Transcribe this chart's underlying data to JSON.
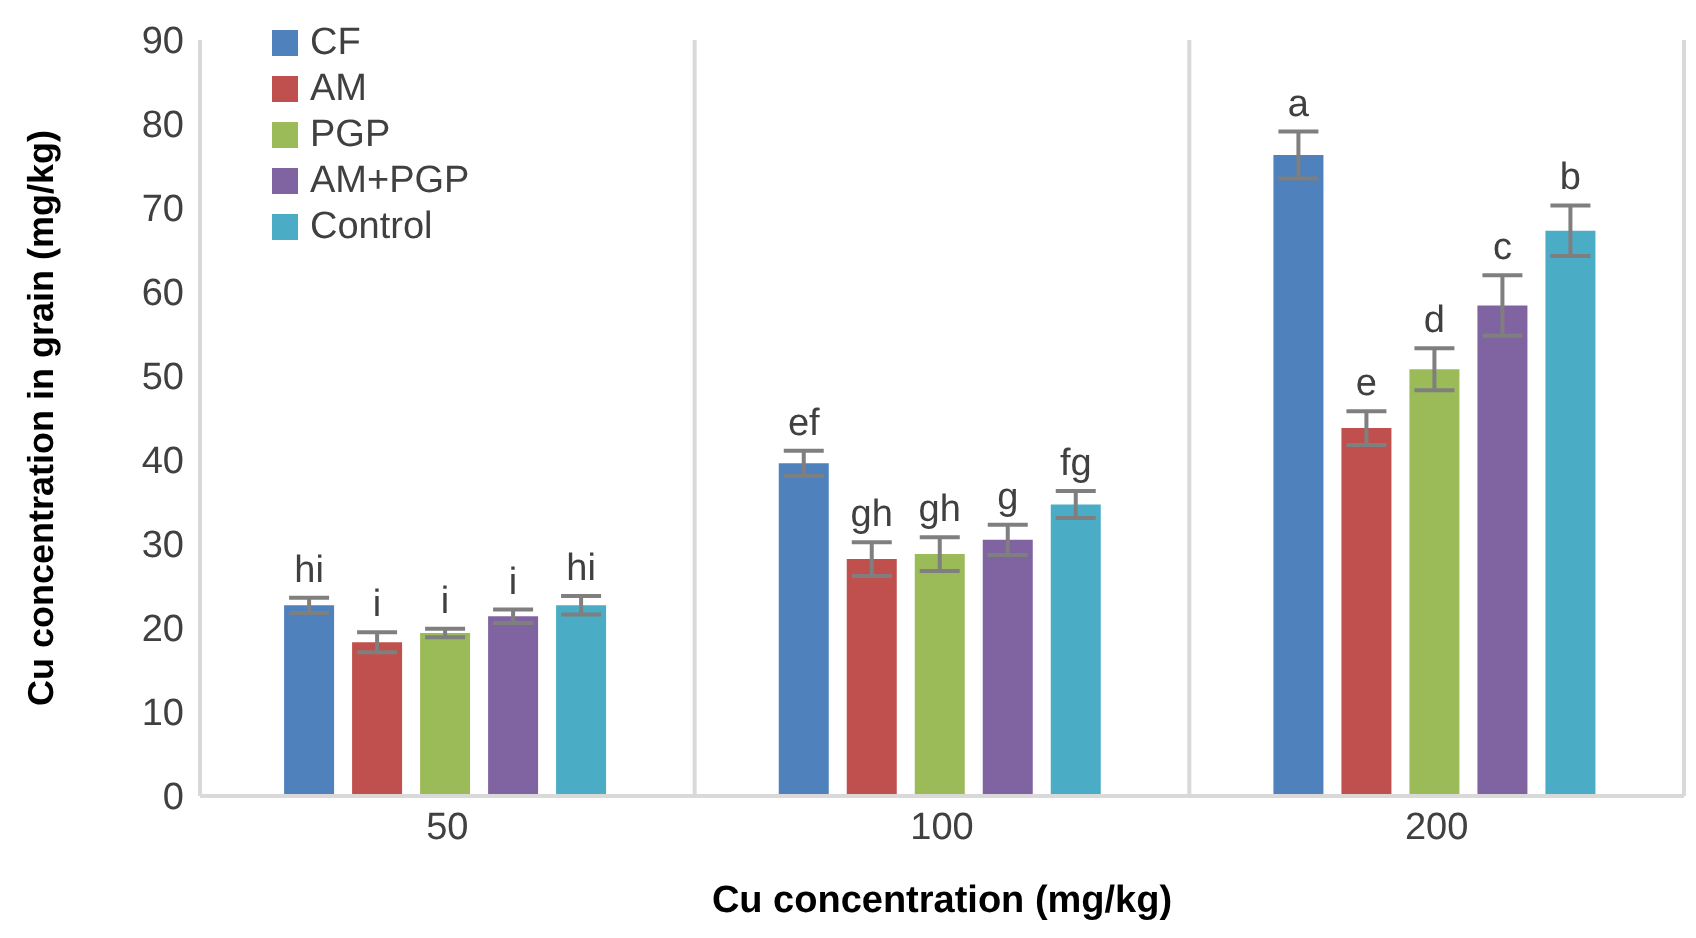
{
  "chart_data": {
    "type": "bar",
    "xlabel": "Cu concentration (mg/kg)",
    "ylabel": "Cu concentration in grain (mg/kg)",
    "categories": [
      "50",
      "100",
      "200"
    ],
    "series": [
      {
        "name": "CF",
        "color": "#4f81bd",
        "values": [
          22.7,
          39.6,
          76.3
        ],
        "errors": [
          0.9,
          1.5,
          2.8
        ],
        "value_labels": [
          "hi",
          "ef",
          "a"
        ]
      },
      {
        "name": "AM",
        "color": "#c0504d",
        "values": [
          18.3,
          28.2,
          43.8
        ],
        "errors": [
          1.2,
          2.0,
          2.0
        ],
        "value_labels": [
          "i",
          "gh",
          "e"
        ]
      },
      {
        "name": "PGP",
        "color": "#9bbb59",
        "values": [
          19.4,
          28.8,
          50.8
        ],
        "errors": [
          0.5,
          2.0,
          2.5
        ],
        "value_labels": [
          "i",
          "gh",
          "d"
        ]
      },
      {
        "name": "AM+PGP",
        "color": "#8064a2",
        "values": [
          21.4,
          30.5,
          58.4
        ],
        "errors": [
          0.8,
          1.8,
          3.6
        ],
        "value_labels": [
          "i",
          "g",
          "c"
        ]
      },
      {
        "name": "Control",
        "color": "#4bacc6",
        "values": [
          22.7,
          34.7,
          67.3
        ],
        "errors": [
          1.1,
          1.6,
          3.0
        ],
        "value_labels": [
          "hi",
          "fg",
          "b"
        ]
      }
    ],
    "ylim": [
      0,
      90
    ],
    "yticks": [
      0,
      10,
      20,
      30,
      40,
      50,
      60,
      70,
      80,
      90
    ],
    "grid": "x",
    "legend": "top left"
  }
}
